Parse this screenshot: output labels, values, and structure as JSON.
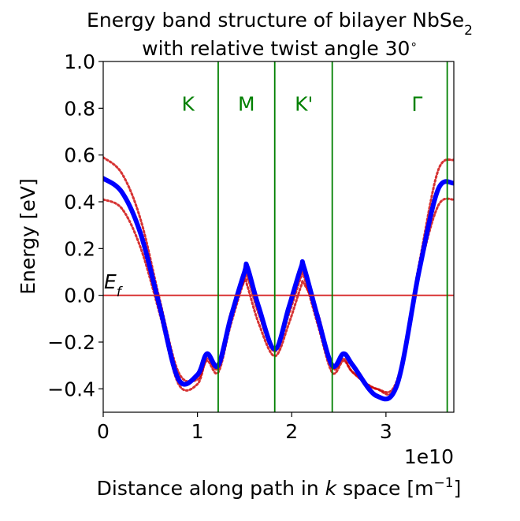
{
  "chart_data": {
    "type": "line",
    "title_line1": "Energy band structure of bilayer NbSe",
    "title_sub": "2",
    "title_line2": "with relative twist angle 30",
    "title_degree": "∘",
    "xlabel_pre": "Distance along path in ",
    "xlabel_k": "k",
    "xlabel_mid": " space [m",
    "xlabel_sup": "−1",
    "xlabel_post": "]",
    "ylabel": "Energy [eV]",
    "x_offset_label": "1e10",
    "xlim": [
      0,
      3.72
    ],
    "ylim": [
      -0.5,
      1.0
    ],
    "x_ticks": [
      {
        "value": 0,
        "label": "0"
      },
      {
        "value": 1,
        "label": "1"
      },
      {
        "value": 2,
        "label": "2"
      },
      {
        "value": 3,
        "label": "3"
      }
    ],
    "y_ticks": [
      {
        "value": -0.4,
        "label": "−0.4"
      },
      {
        "value": -0.2,
        "label": "−0.2"
      },
      {
        "value": 0.0,
        "label": "0.0"
      },
      {
        "value": 0.2,
        "label": "0.2"
      },
      {
        "value": 0.4,
        "label": "0.4"
      },
      {
        "value": 0.6,
        "label": "0.6"
      },
      {
        "value": 0.8,
        "label": "0.8"
      },
      {
        "value": 1.0,
        "label": "1.0"
      }
    ],
    "fermi_level": {
      "energy": 0.0,
      "label": "E",
      "label_sub": "f",
      "color": "#d62728"
    },
    "high_symmetry_points": [
      {
        "label": "K",
        "label_x": 0.9,
        "line_x": 1.22
      },
      {
        "label": "M",
        "label_x": 1.52,
        "line_x": 1.82
      },
      {
        "label": "K'",
        "label_x": 2.13,
        "line_x": 2.43
      },
      {
        "label": "Γ",
        "label_x": 3.33,
        "line_x": 3.65
      }
    ],
    "symmetry_color": "#008000",
    "label_energy": 0.82,
    "series": [
      {
        "color": "#0000ff",
        "x": [
          0,
          0.2,
          0.4,
          0.6,
          0.8,
          1.0,
          1.1,
          1.22,
          1.35,
          1.5,
          1.53,
          1.65,
          1.82,
          1.97,
          2.1,
          2.13,
          2.28,
          2.43,
          2.55,
          2.65,
          2.9,
          3.12,
          3.35,
          3.55,
          3.72
        ],
        "y": [
          0.5,
          0.44,
          0.26,
          -0.05,
          -0.36,
          -0.34,
          -0.25,
          -0.3,
          -0.1,
          0.1,
          0.12,
          -0.05,
          -0.23,
          -0.05,
          0.12,
          0.12,
          -0.1,
          -0.3,
          -0.25,
          -0.3,
          -0.43,
          -0.38,
          0.1,
          0.45,
          0.48
        ]
      },
      {
        "color": "#cc0000",
        "x": [
          0,
          0.2,
          0.4,
          0.6,
          0.8,
          1.0,
          1.1,
          1.22,
          1.35,
          1.5,
          1.53,
          1.65,
          1.82,
          1.97,
          2.1,
          2.13,
          2.28,
          2.43,
          2.55,
          2.65,
          2.9,
          3.12,
          3.35,
          3.55,
          3.72
        ],
        "y": [
          0.59,
          0.52,
          0.32,
          -0.02,
          -0.33,
          -0.36,
          -0.28,
          -0.33,
          -0.13,
          0.07,
          0.08,
          -0.08,
          -0.24,
          -0.08,
          0.08,
          0.08,
          -0.13,
          -0.33,
          -0.28,
          -0.33,
          -0.4,
          -0.36,
          0.13,
          0.53,
          0.58
        ]
      },
      {
        "color": "#cc0000",
        "x": [
          0,
          0.2,
          0.4,
          0.6,
          0.8,
          1.0,
          1.1,
          1.22,
          1.35,
          1.5,
          1.53,
          1.65,
          1.82,
          1.97,
          2.1,
          2.13,
          2.28,
          2.43,
          2.55,
          2.65,
          2.9,
          3.12,
          3.35,
          3.55,
          3.72
        ],
        "y": [
          0.41,
          0.37,
          0.2,
          -0.08,
          -0.38,
          -0.38,
          -0.27,
          -0.31,
          -0.08,
          0.06,
          0.04,
          -0.12,
          -0.26,
          -0.12,
          0.04,
          0.05,
          -0.08,
          -0.31,
          -0.27,
          -0.33,
          -0.4,
          -0.38,
          0.09,
          0.38,
          0.41
        ]
      }
    ]
  }
}
